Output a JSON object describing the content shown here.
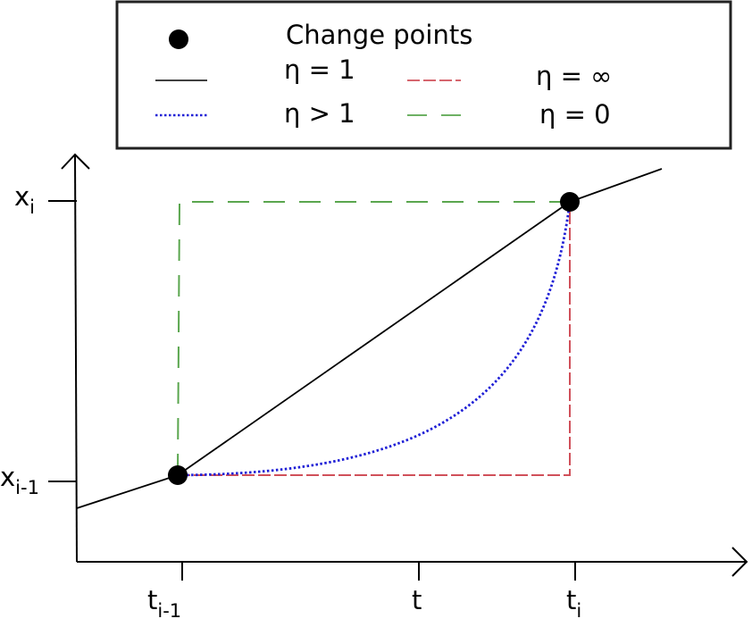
{
  "legend": {
    "change_points": "Change points",
    "eta_1": "η = 1",
    "eta_gt_1": "η > 1",
    "eta_inf": "η = ∞",
    "eta_0": "η = 0"
  },
  "axes": {
    "x_i_base": "x",
    "x_i_sub": "i",
    "x_im1_base": "x",
    "x_im1_sub": "i-1",
    "t_im1_base": "t",
    "t_im1_sub": "i-1",
    "t_label": "t",
    "t_i_base": "t",
    "t_i_sub": "i"
  },
  "colors": {
    "eta_1": "#000000",
    "eta_gt_1": "#1f1fd6",
    "eta_inf": "#d0505a",
    "eta_0": "#5aa64e",
    "change_point": "#000000"
  }
}
